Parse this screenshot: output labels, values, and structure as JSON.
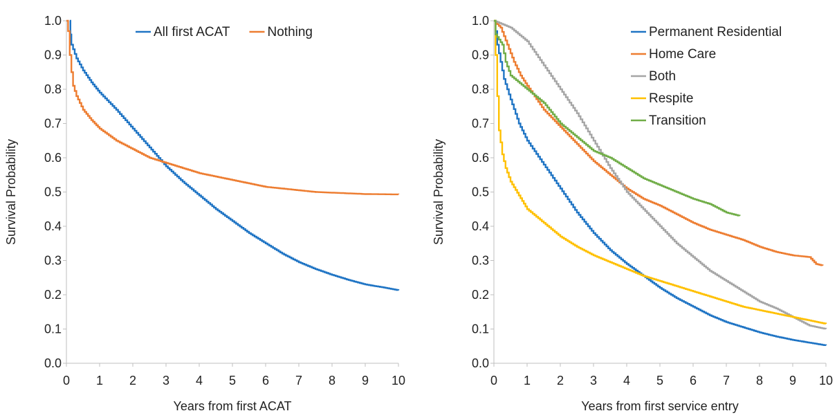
{
  "chart_data": [
    {
      "type": "line",
      "step": true,
      "title": "",
      "xlabel": "Years from first ACAT",
      "ylabel": "Survival Probability",
      "xlim": [
        0,
        10
      ],
      "ylim": [
        0,
        1
      ],
      "x_ticks": [
        "0",
        "1",
        "2",
        "3",
        "4",
        "5",
        "6",
        "7",
        "8",
        "9",
        "10"
      ],
      "y_ticks": [
        "0.0",
        "0.1",
        "0.2",
        "0.3",
        "0.4",
        "0.5",
        "0.6",
        "0.7",
        "0.8",
        "0.9",
        "1.0"
      ],
      "grid": false,
      "legend_position": "top",
      "series": [
        {
          "name": "All first ACAT",
          "color": "#1f74c4",
          "points": [
            [
              0.1,
              1.0
            ],
            [
              0.12,
              0.96
            ],
            [
              0.15,
              0.93
            ],
            [
              0.3,
              0.89
            ],
            [
              0.5,
              0.855
            ],
            [
              0.75,
              0.82
            ],
            [
              1,
              0.79
            ],
            [
              1.5,
              0.74
            ],
            [
              2,
              0.685
            ],
            [
              2.5,
              0.63
            ],
            [
              3,
              0.575
            ],
            [
              3.5,
              0.53
            ],
            [
              4,
              0.49
            ],
            [
              4.5,
              0.45
            ],
            [
              5,
              0.415
            ],
            [
              5.5,
              0.38
            ],
            [
              6,
              0.35
            ],
            [
              6.5,
              0.32
            ],
            [
              7,
              0.295
            ],
            [
              7.5,
              0.275
            ],
            [
              8,
              0.258
            ],
            [
              8.5,
              0.243
            ],
            [
              9,
              0.23
            ],
            [
              9.5,
              0.222
            ],
            [
              10,
              0.213
            ]
          ]
        },
        {
          "name": "Nothing",
          "color": "#ed7d31",
          "points": [
            [
              0,
              1.0
            ],
            [
              0.05,
              0.97
            ],
            [
              0.1,
              0.9
            ],
            [
              0.15,
              0.85
            ],
            [
              0.2,
              0.81
            ],
            [
              0.3,
              0.78
            ],
            [
              0.5,
              0.74
            ],
            [
              0.75,
              0.71
            ],
            [
              1,
              0.685
            ],
            [
              1.5,
              0.65
            ],
            [
              2,
              0.625
            ],
            [
              2.5,
              0.6
            ],
            [
              3,
              0.585
            ],
            [
              3.5,
              0.57
            ],
            [
              4,
              0.555
            ],
            [
              4.5,
              0.545
            ],
            [
              5,
              0.535
            ],
            [
              5.5,
              0.525
            ],
            [
              6,
              0.515
            ],
            [
              6.5,
              0.51
            ],
            [
              7,
              0.505
            ],
            [
              7.5,
              0.5
            ],
            [
              8,
              0.498
            ],
            [
              8.5,
              0.496
            ],
            [
              9,
              0.494
            ],
            [
              10,
              0.493
            ]
          ]
        }
      ]
    },
    {
      "type": "line",
      "step": true,
      "title": "",
      "xlabel": "Years from first service entry",
      "ylabel": "Survival Probability",
      "xlim": [
        0,
        10
      ],
      "ylim": [
        0,
        1
      ],
      "x_ticks": [
        "0",
        "1",
        "2",
        "3",
        "4",
        "5",
        "6",
        "7",
        "8",
        "9",
        "10"
      ],
      "y_ticks": [
        "0.0",
        "0.1",
        "0.2",
        "0.3",
        "0.4",
        "0.5",
        "0.6",
        "0.7",
        "0.8",
        "0.9",
        "1.0"
      ],
      "grid": false,
      "legend_position": "top-right",
      "series": [
        {
          "name": "Permanent Residential",
          "color": "#1f74c4",
          "points": [
            [
              0,
              1.0
            ],
            [
              0.05,
              0.97
            ],
            [
              0.1,
              0.93
            ],
            [
              0.2,
              0.88
            ],
            [
              0.3,
              0.83
            ],
            [
              0.5,
              0.77
            ],
            [
              0.75,
              0.7
            ],
            [
              1,
              0.65
            ],
            [
              1.5,
              0.58
            ],
            [
              2,
              0.51
            ],
            [
              2.5,
              0.44
            ],
            [
              3,
              0.38
            ],
            [
              3.5,
              0.33
            ],
            [
              4,
              0.29
            ],
            [
              4.5,
              0.255
            ],
            [
              5,
              0.22
            ],
            [
              5.5,
              0.19
            ],
            [
              6,
              0.165
            ],
            [
              6.5,
              0.14
            ],
            [
              7,
              0.12
            ],
            [
              7.5,
              0.105
            ],
            [
              8,
              0.09
            ],
            [
              8.5,
              0.078
            ],
            [
              9,
              0.068
            ],
            [
              9.5,
              0.06
            ],
            [
              10,
              0.052
            ]
          ]
        },
        {
          "name": "Home Care",
          "color": "#ed7d31",
          "points": [
            [
              0,
              1.0
            ],
            [
              0.2,
              0.98
            ],
            [
              0.4,
              0.93
            ],
            [
              0.6,
              0.88
            ],
            [
              0.8,
              0.84
            ],
            [
              1,
              0.81
            ],
            [
              1.5,
              0.74
            ],
            [
              2,
              0.69
            ],
            [
              2.5,
              0.64
            ],
            [
              3,
              0.59
            ],
            [
              3.5,
              0.55
            ],
            [
              4,
              0.51
            ],
            [
              4.5,
              0.48
            ],
            [
              5,
              0.46
            ],
            [
              5.5,
              0.435
            ],
            [
              6,
              0.41
            ],
            [
              6.5,
              0.39
            ],
            [
              7,
              0.375
            ],
            [
              7.5,
              0.36
            ],
            [
              8,
              0.34
            ],
            [
              8.5,
              0.325
            ],
            [
              9,
              0.315
            ],
            [
              9.5,
              0.31
            ],
            [
              9.7,
              0.29
            ],
            [
              9.9,
              0.285
            ]
          ]
        },
        {
          "name": "Both",
          "color": "#a5a5a5",
          "points": [
            [
              0,
              1.0
            ],
            [
              0.5,
              0.98
            ],
            [
              1,
              0.94
            ],
            [
              1.5,
              0.87
            ],
            [
              2,
              0.8
            ],
            [
              2.5,
              0.73
            ],
            [
              3,
              0.65
            ],
            [
              3.5,
              0.57
            ],
            [
              4,
              0.5
            ],
            [
              4.5,
              0.45
            ],
            [
              5,
              0.4
            ],
            [
              5.5,
              0.35
            ],
            [
              6,
              0.31
            ],
            [
              6.5,
              0.27
            ],
            [
              7,
              0.24
            ],
            [
              7.5,
              0.21
            ],
            [
              8,
              0.18
            ],
            [
              8.5,
              0.16
            ],
            [
              9,
              0.135
            ],
            [
              9.5,
              0.11
            ],
            [
              10,
              0.1
            ]
          ]
        },
        {
          "name": "Respite",
          "color": "#ffc000",
          "points": [
            [
              0,
              1.0
            ],
            [
              0.05,
              0.9
            ],
            [
              0.1,
              0.78
            ],
            [
              0.15,
              0.68
            ],
            [
              0.25,
              0.61
            ],
            [
              0.35,
              0.57
            ],
            [
              0.5,
              0.53
            ],
            [
              0.75,
              0.49
            ],
            [
              1,
              0.45
            ],
            [
              1.5,
              0.41
            ],
            [
              2,
              0.37
            ],
            [
              2.5,
              0.34
            ],
            [
              3,
              0.315
            ],
            [
              3.5,
              0.295
            ],
            [
              4,
              0.275
            ],
            [
              4.5,
              0.255
            ],
            [
              5,
              0.24
            ],
            [
              5.5,
              0.225
            ],
            [
              6,
              0.21
            ],
            [
              6.5,
              0.195
            ],
            [
              7,
              0.18
            ],
            [
              7.5,
              0.165
            ],
            [
              8,
              0.155
            ],
            [
              8.5,
              0.145
            ],
            [
              9,
              0.135
            ],
            [
              9.5,
              0.125
            ],
            [
              10,
              0.115
            ]
          ]
        },
        {
          "name": "Transition",
          "color": "#70ad47",
          "points": [
            [
              0,
              1.0
            ],
            [
              0.05,
              0.96
            ],
            [
              0.25,
              0.93
            ],
            [
              0.35,
              0.88
            ],
            [
              0.5,
              0.84
            ],
            [
              1,
              0.8
            ],
            [
              1.5,
              0.76
            ],
            [
              2,
              0.7
            ],
            [
              2.5,
              0.66
            ],
            [
              3,
              0.62
            ],
            [
              3.5,
              0.6
            ],
            [
              4,
              0.57
            ],
            [
              4.5,
              0.54
            ],
            [
              5,
              0.52
            ],
            [
              5.5,
              0.5
            ],
            [
              6,
              0.48
            ],
            [
              6.5,
              0.465
            ],
            [
              7,
              0.44
            ],
            [
              7.4,
              0.43
            ]
          ]
        }
      ]
    }
  ]
}
